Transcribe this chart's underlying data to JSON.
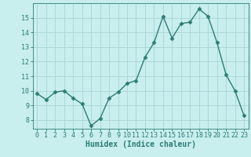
{
  "x": [
    0,
    1,
    2,
    3,
    4,
    5,
    6,
    7,
    8,
    9,
    10,
    11,
    12,
    13,
    14,
    15,
    16,
    17,
    18,
    19,
    20,
    21,
    22,
    23
  ],
  "y": [
    9.8,
    9.4,
    9.9,
    10.0,
    9.5,
    9.1,
    7.6,
    8.1,
    9.5,
    9.9,
    10.5,
    10.7,
    12.3,
    13.3,
    15.1,
    13.6,
    14.6,
    14.7,
    15.6,
    15.1,
    13.3,
    11.1,
    10.0,
    8.3
  ],
  "line_color": "#2d7d74",
  "marker": "D",
  "markersize": 2.5,
  "linewidth": 1.0,
  "bg_color": "#c8eeee",
  "grid_color": "#aad4d4",
  "xlabel": "Humidex (Indice chaleur)",
  "xlabel_fontsize": 7,
  "tick_fontsize": 6,
  "xlim": [
    -0.5,
    23.5
  ],
  "ylim": [
    7.4,
    16.0
  ],
  "yticks": [
    8,
    9,
    10,
    11,
    12,
    13,
    14,
    15
  ],
  "xticks": [
    0,
    1,
    2,
    3,
    4,
    5,
    6,
    7,
    8,
    9,
    10,
    11,
    12,
    13,
    14,
    15,
    16,
    17,
    18,
    19,
    20,
    21,
    22,
    23
  ],
  "axis_color": "#2d7d74"
}
